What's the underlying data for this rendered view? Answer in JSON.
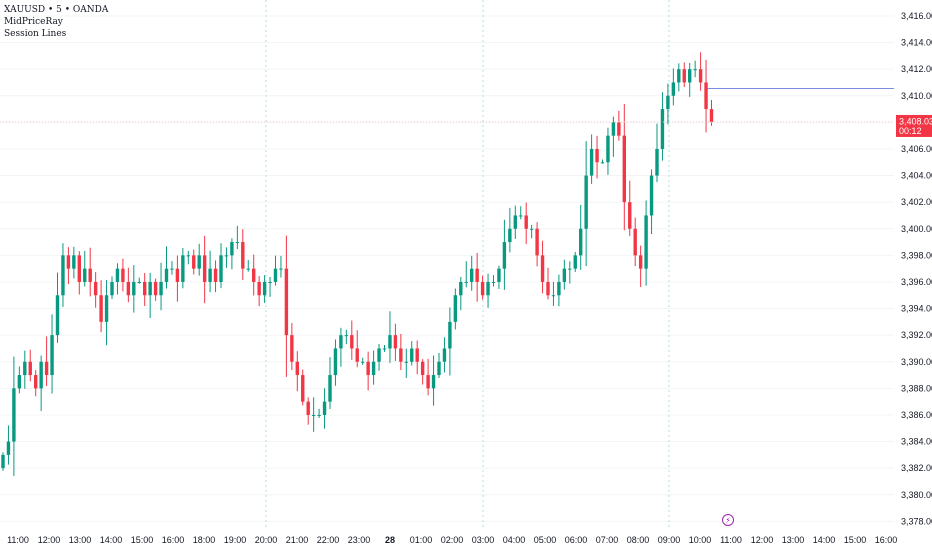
{
  "legend": {
    "symbol_line": "XAUUSD • 5 • OANDA",
    "indicator_1": "MidPriceRay",
    "indicator_2": "Session Lines"
  },
  "chart_data": {
    "type": "candlestick",
    "symbol": "XAUUSD",
    "interval": "5",
    "broker": "OANDA",
    "ylim": [
      3377.5,
      3417.2
    ],
    "y_ticks": [
      "3,378.000",
      "3,380.000",
      "3,382.000",
      "3,384.000",
      "3,386.000",
      "3,388.000",
      "3,390.000",
      "3,392.000",
      "3,394.000",
      "3,396.000",
      "3,398.000",
      "3,400.000",
      "3,402.000",
      "3,404.000",
      "3,406.000",
      "3,408.000",
      "3,410.000",
      "3,412.000",
      "3,414.000",
      "3,416.000"
    ],
    "y_tick_values": [
      3378,
      3380,
      3382,
      3384,
      3386,
      3388,
      3390,
      3392,
      3394,
      3396,
      3398,
      3400,
      3402,
      3404,
      3406,
      3408,
      3410,
      3412,
      3414,
      3416
    ],
    "x_ticks": [
      {
        "label": "11:00",
        "bold": false
      },
      {
        "label": "12:00",
        "bold": false
      },
      {
        "label": "13:00",
        "bold": false
      },
      {
        "label": "14:00",
        "bold": false
      },
      {
        "label": "15:00",
        "bold": false
      },
      {
        "label": "16:00",
        "bold": false
      },
      {
        "label": "18:00",
        "bold": false
      },
      {
        "label": "19:00",
        "bold": false
      },
      {
        "label": "20:00",
        "bold": false
      },
      {
        "label": "21:00",
        "bold": false
      },
      {
        "label": "22:00",
        "bold": false
      },
      {
        "label": "23:00",
        "bold": false
      },
      {
        "label": "28",
        "bold": true
      },
      {
        "label": "01:00",
        "bold": false
      },
      {
        "label": "02:00",
        "bold": false
      },
      {
        "label": "03:00",
        "bold": false
      },
      {
        "label": "04:00",
        "bold": false
      },
      {
        "label": "05:00",
        "bold": false
      },
      {
        "label": "06:00",
        "bold": false
      },
      {
        "label": "07:00",
        "bold": false
      },
      {
        "label": "08:00",
        "bold": false
      },
      {
        "label": "09:00",
        "bold": false
      },
      {
        "label": "10:00",
        "bold": false
      },
      {
        "label": "11:00",
        "bold": false
      },
      {
        "label": "12:00",
        "bold": false
      },
      {
        "label": "13:00",
        "bold": false
      },
      {
        "label": "14:00",
        "bold": false
      },
      {
        "label": "15:00",
        "bold": false
      },
      {
        "label": "16:00",
        "bold": false
      }
    ],
    "session_line_hours": [
      "20:00",
      "03:00",
      "09:00"
    ],
    "last_price": 3408.03,
    "last_price_label": "3,408.030",
    "countdown": "00:12",
    "mid_price_ray": 3410.55,
    "up_color": "#089981",
    "down_color": "#f23645",
    "closes": [
      3383,
      3384,
      3388,
      3389,
      3390,
      3389,
      3388,
      3390,
      3389,
      3392,
      3395,
      3398,
      3397,
      3398,
      3396,
      3397,
      3396,
      3395,
      3393,
      3395,
      3396,
      3397,
      3396,
      3395,
      3396,
      3396,
      3395,
      3396,
      3395,
      3396,
      3397,
      3397,
      3396,
      3398,
      3398,
      3397,
      3398,
      3396,
      3397,
      3396,
      3398,
      3398,
      3399,
      3399,
      3397,
      3397,
      3396,
      3395,
      3396,
      3396,
      3397,
      3397,
      3392,
      3390,
      3389,
      3387,
      3386,
      3386,
      3386,
      3387,
      3389,
      3391,
      3392,
      3392,
      3391,
      3390,
      3390,
      3389,
      3390,
      3391,
      3391,
      3392,
      3391,
      3390,
      3390,
      3391,
      3390,
      3389,
      3388,
      3389,
      3390,
      3391,
      3393,
      3395,
      3396,
      3396,
      3397,
      3396,
      3395,
      3396,
      3396,
      3397,
      3399,
      3400,
      3401,
      3401,
      3400,
      3400,
      3398,
      3396,
      3395,
      3395,
      3396,
      3397,
      3397,
      3398,
      3400,
      3404,
      3406,
      3405,
      3405,
      3407,
      3408,
      3407,
      3402,
      3400,
      3398,
      3397,
      3401,
      3404,
      3406,
      3409,
      3410,
      3411,
      3412,
      3411,
      3412,
      3412,
      3411,
      3409,
      3408.03
    ],
    "event_marker": {
      "glyph": "⚡"
    }
  }
}
